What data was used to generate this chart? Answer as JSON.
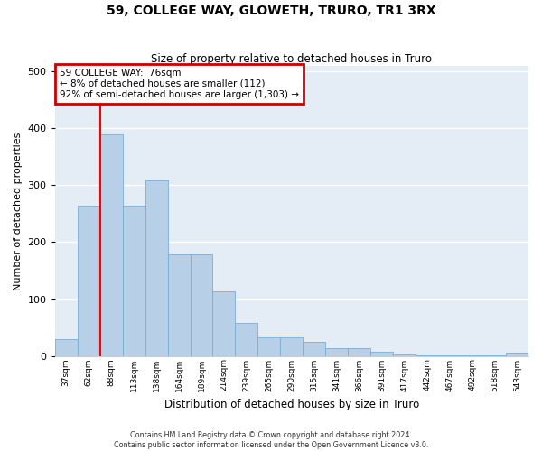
{
  "title": "59, COLLEGE WAY, GLOWETH, TRURO, TR1 3RX",
  "subtitle": "Size of property relative to detached houses in Truro",
  "xlabel": "Distribution of detached houses by size in Truro",
  "ylabel": "Number of detached properties",
  "categories": [
    "37sqm",
    "62sqm",
    "88sqm",
    "113sqm",
    "138sqm",
    "164sqm",
    "189sqm",
    "214sqm",
    "239sqm",
    "265sqm",
    "290sqm",
    "315sqm",
    "341sqm",
    "366sqm",
    "391sqm",
    "417sqm",
    "442sqm",
    "467sqm",
    "492sqm",
    "518sqm",
    "543sqm"
  ],
  "values": [
    30,
    265,
    390,
    265,
    308,
    179,
    179,
    114,
    58,
    33,
    33,
    25,
    13,
    13,
    7,
    3,
    1,
    1,
    1,
    1,
    6
  ],
  "bar_color": "#b8cfe8",
  "bar_edge_color": "#7aacd4",
  "bg_color": "#e4edf5",
  "grid_color": "#ffffff",
  "annotation_text": "59 COLLEGE WAY:  76sqm\n← 8% of detached houses are smaller (112)\n92% of semi-detached houses are larger (1,303) →",
  "annotation_box_color": "#cc0000",
  "footer_line1": "Contains HM Land Registry data © Crown copyright and database right 2024.",
  "footer_line2": "Contains public sector information licensed under the Open Government Licence v3.0.",
  "ylim": [
    0,
    510
  ],
  "red_line_x": 1.5
}
